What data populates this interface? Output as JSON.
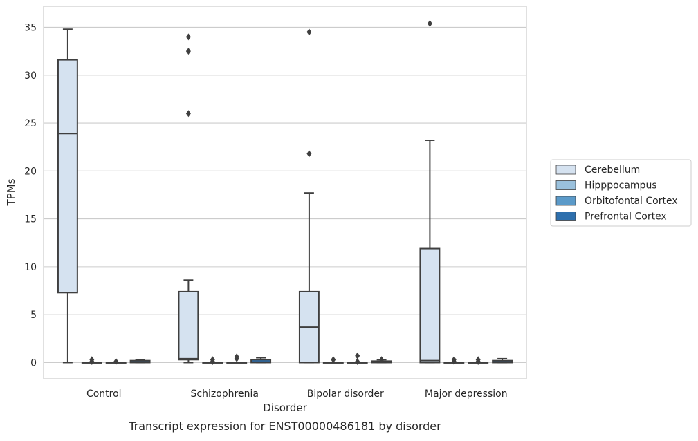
{
  "chart_data": {
    "type": "box",
    "caption": "Transcript expression for ENST00000486181 by disorder",
    "xlabel": "Disorder",
    "ylabel": "TPMs",
    "ylim": [
      -1.7,
      37.2
    ],
    "yticks": [
      0,
      5,
      10,
      15,
      20,
      25,
      30,
      35
    ],
    "grid": "horizontal",
    "legend_position": "right",
    "categories": [
      "Control",
      "Schizophrenia",
      "Bipolar disorder",
      "Major depression"
    ],
    "series": [
      {
        "name": "Cerebellum",
        "color": "#d5e2f0",
        "boxes": [
          {
            "whislo": 0.0,
            "q1": 7.3,
            "med": 23.9,
            "q3": 31.6,
            "whishi": 34.8,
            "fliers": []
          },
          {
            "whislo": 0.0,
            "q1": 0.3,
            "med": 0.4,
            "q3": 7.4,
            "whishi": 8.6,
            "fliers": [
              26.0,
              32.5,
              34.0
            ]
          },
          {
            "whislo": 0.0,
            "q1": 0.0,
            "med": 3.7,
            "q3": 7.4,
            "whishi": 17.7,
            "fliers": [
              21.8,
              34.5
            ]
          },
          {
            "whislo": 0.0,
            "q1": 0.0,
            "med": 0.2,
            "q3": 11.9,
            "whishi": 23.2,
            "fliers": [
              35.4
            ]
          }
        ]
      },
      {
        "name": "Hipppocampus",
        "color": "#9ac1dd",
        "boxes": [
          {
            "whislo": 0.0,
            "q1": 0.0,
            "med": 0.0,
            "q3": 0.0,
            "whishi": 0.0,
            "fliers": [
              0.1,
              0.3
            ]
          },
          {
            "whislo": 0.0,
            "q1": 0.0,
            "med": 0.0,
            "q3": 0.0,
            "whishi": 0.0,
            "fliers": [
              0.1,
              0.3
            ]
          },
          {
            "whislo": 0.0,
            "q1": 0.0,
            "med": 0.0,
            "q3": 0.0,
            "whishi": 0.0,
            "fliers": [
              0.3
            ]
          },
          {
            "whislo": 0.0,
            "q1": 0.0,
            "med": 0.0,
            "q3": 0.0,
            "whishi": 0.0,
            "fliers": [
              0.1,
              0.3
            ]
          }
        ]
      },
      {
        "name": "Orbitofontal Cortex",
        "color": "#5b9ac9",
        "boxes": [
          {
            "whislo": 0.0,
            "q1": 0.0,
            "med": 0.0,
            "q3": 0.0,
            "whishi": 0.0,
            "fliers": [
              0.1
            ]
          },
          {
            "whislo": 0.0,
            "q1": 0.0,
            "med": 0.0,
            "q3": 0.0,
            "whishi": 0.0,
            "fliers": [
              0.4,
              0.6
            ]
          },
          {
            "whislo": 0.0,
            "q1": 0.0,
            "med": 0.0,
            "q3": 0.0,
            "whishi": 0.0,
            "fliers": [
              0.1,
              0.7
            ]
          },
          {
            "whislo": 0.0,
            "q1": 0.0,
            "med": 0.0,
            "q3": 0.0,
            "whishi": 0.0,
            "fliers": [
              0.1,
              0.3
            ]
          }
        ]
      },
      {
        "name": "Prefrontal Cortex",
        "color": "#2d6fad",
        "boxes": [
          {
            "whislo": 0.0,
            "q1": 0.0,
            "med": 0.05,
            "q3": 0.2,
            "whishi": 0.3,
            "fliers": []
          },
          {
            "whislo": 0.0,
            "q1": 0.0,
            "med": 0.05,
            "q3": 0.3,
            "whishi": 0.5,
            "fliers": []
          },
          {
            "whislo": 0.0,
            "q1": 0.0,
            "med": 0.05,
            "q3": 0.15,
            "whishi": 0.3,
            "fliers": [
              0.3
            ]
          },
          {
            "whislo": 0.0,
            "q1": 0.0,
            "med": 0.05,
            "q3": 0.2,
            "whishi": 0.4,
            "fliers": []
          }
        ]
      }
    ]
  }
}
